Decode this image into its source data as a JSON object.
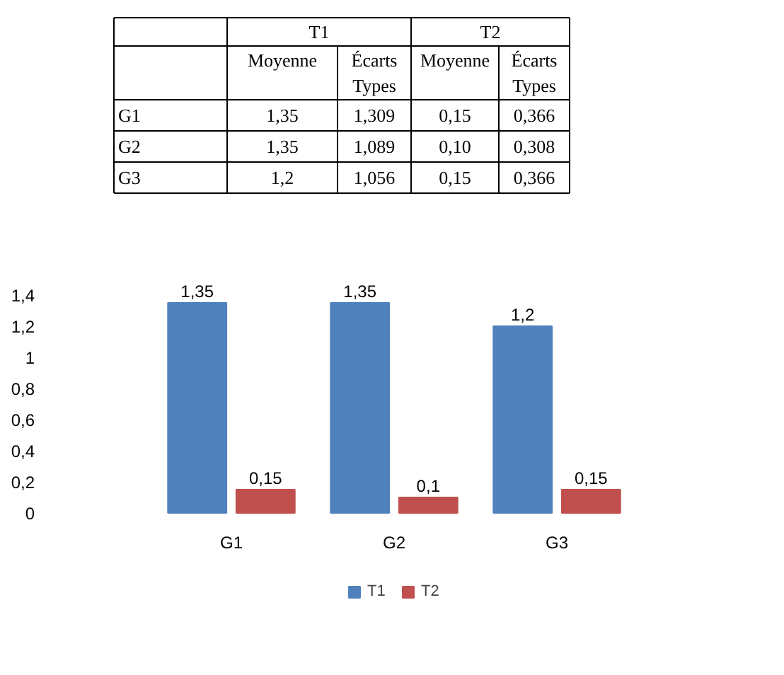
{
  "chart_data": {
    "type": "bar",
    "categories": [
      "G1",
      "G2",
      "G3"
    ],
    "series": [
      {
        "name": "T1",
        "color": "#4f81bd",
        "values": [
          1.35,
          1.35,
          1.2
        ],
        "value_labels": [
          "1,35",
          "1,35",
          "1,2"
        ]
      },
      {
        "name": "T2",
        "color": "#c0504d",
        "values": [
          0.15,
          0.1,
          0.15
        ],
        "value_labels": [
          "0,15",
          "0,1",
          "0,15"
        ]
      }
    ],
    "ylim": [
      0,
      1.4
    ],
    "yticks": [
      0,
      {
        "value": 0.2,
        "label": "0,2"
      },
      {
        "value": 0.4,
        "label": "0,4"
      },
      {
        "value": 0.6,
        "label": "0,6"
      },
      {
        "value": 0.8,
        "label": "0,8"
      },
      1,
      {
        "value": 1.2,
        "label": "1,2"
      },
      {
        "value": 1.4,
        "label": "1,4"
      }
    ],
    "grid": false,
    "legend": "bottom",
    "annotations": [
      "T1",
      "T2",
      "Moyenne",
      "Écarts Types",
      "Moyenne",
      "Écarts Types",
      "G1",
      "1,35",
      "1,309",
      "0,15",
      "0,366",
      "G2",
      "1,35",
      "1,089",
      "0,10",
      "0,308",
      "G3",
      "1,2",
      "1,056",
      "0,15",
      "0,366"
    ]
  }
}
